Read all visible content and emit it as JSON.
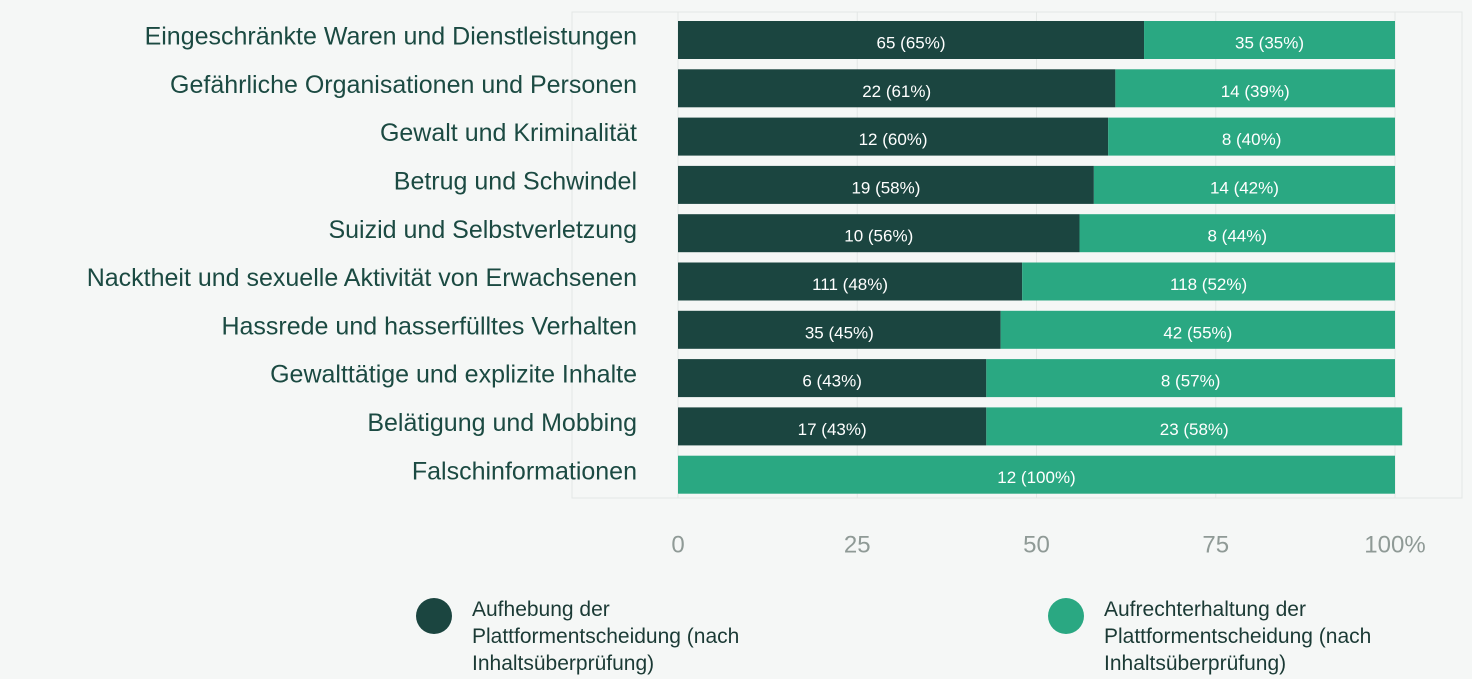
{
  "chart_data": {
    "type": "stacked_barh",
    "categories": [
      "Eingeschränkte Waren und Dienstleistungen",
      "Gefährliche Organisationen und Personen",
      "Gewalt und Kriminalität",
      "Betrug und Schwindel",
      "Suizid und Selbstverletzung",
      "Nacktheit und sexuelle Aktivität von Erwachsenen",
      "Hassrede und hasserfülltes Verhalten",
      "Gewalttätige und explizite Inhalte",
      "Belätigung und Mobbing",
      "Falschinformationen"
    ],
    "series": [
      {
        "name": "Aufhebung der Plattformentscheidung (nach Inhaltsüberprüfung)",
        "color": "#1b4540",
        "values": [
          65,
          61,
          60,
          58,
          56,
          48,
          45,
          43,
          43,
          0
        ],
        "value_labels": [
          "65 (65%)",
          "22 (61%)",
          "12 (60%)",
          "19 (58%)",
          "10 (56%)",
          "111 (48%)",
          "35 (45%)",
          "6 (43%)",
          "17 (43%)",
          null
        ]
      },
      {
        "name": "Aufrechterhaltung der Plattformentscheidung (nach Inhaltsüberprüfung)",
        "color": "#2aa882",
        "values": [
          35,
          39,
          40,
          42,
          44,
          52,
          55,
          57,
          58,
          100
        ],
        "value_labels": [
          "35 (35%)",
          "14 (39%)",
          "8 (40%)",
          "14 (42%)",
          "8 (44%)",
          "118 (52%)",
          "42 (55%)",
          "8 (57%)",
          "23 (58%)",
          "12 (100%)"
        ]
      }
    ],
    "xlim": [
      0,
      100
    ],
    "xticks": [
      0,
      25,
      50,
      75,
      {
        "value": 100,
        "label": "100%"
      }
    ],
    "grid": true
  }
}
